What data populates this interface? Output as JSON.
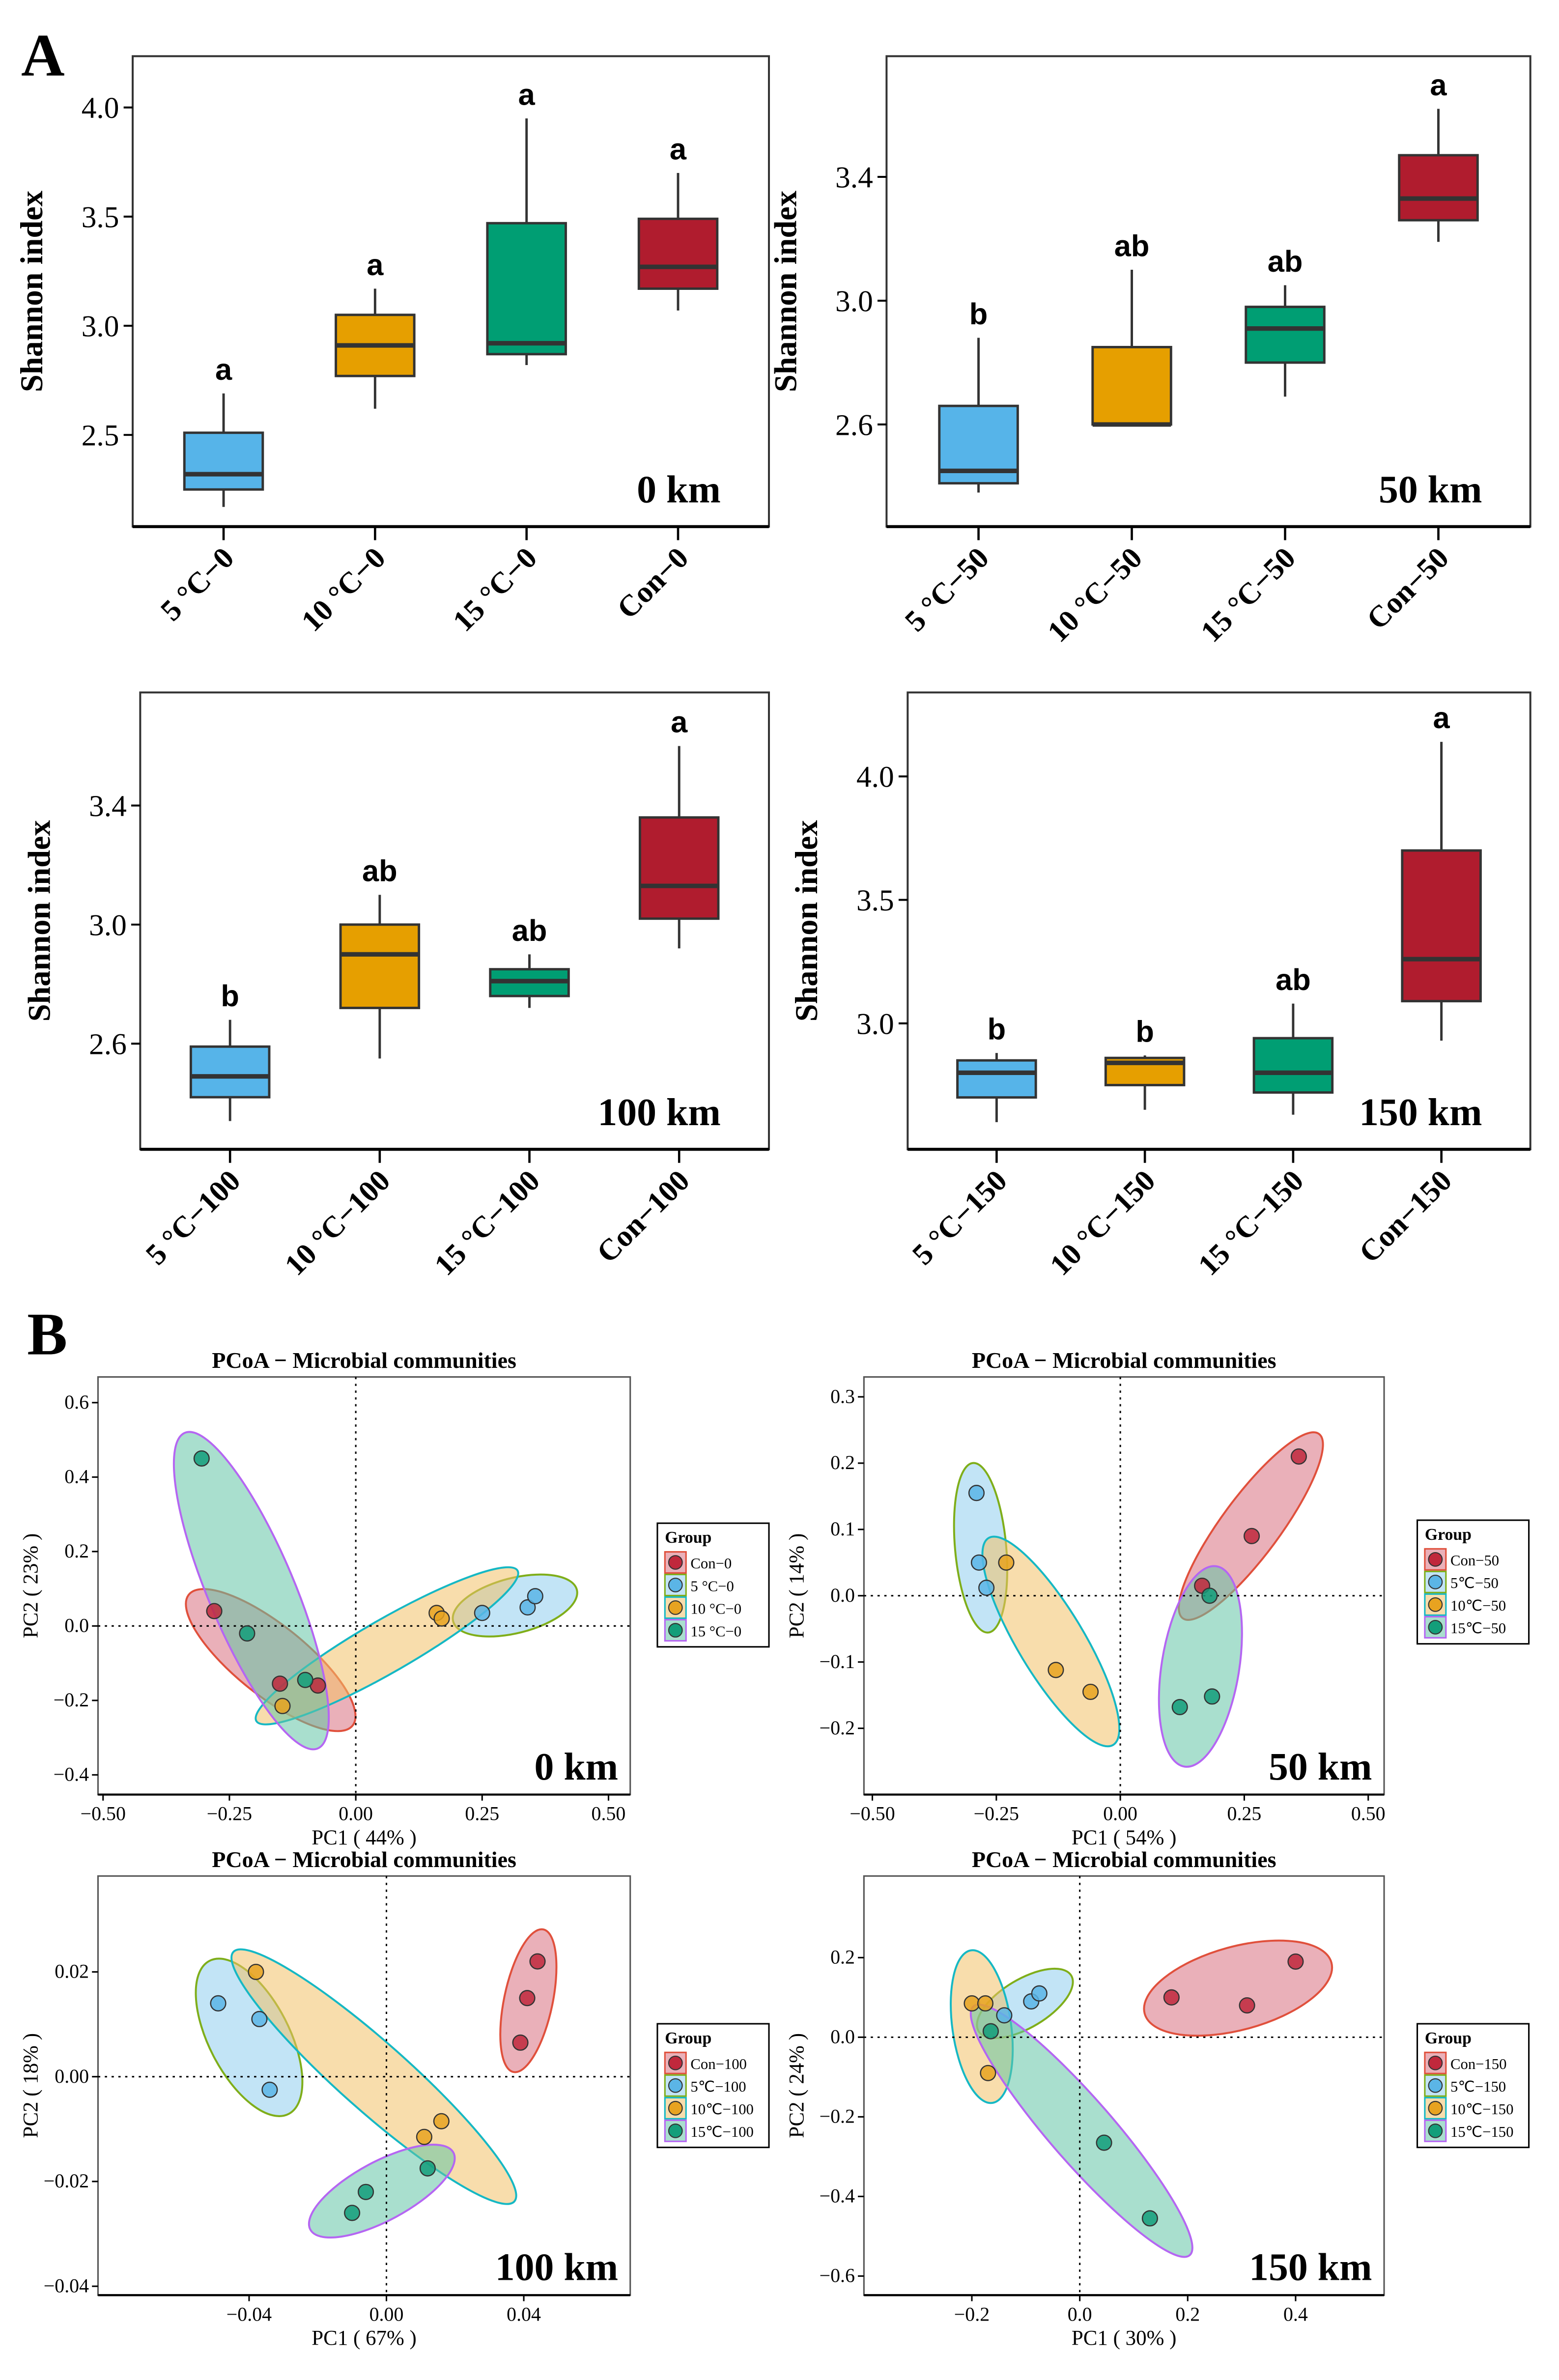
{
  "panel_labels": {
    "a": "A",
    "b": "B"
  },
  "colors": {
    "con": "#b01c2e",
    "c5": "#56b4e9",
    "c10": "#e69f00",
    "c15": "#009e73"
  },
  "chart_data": [
    {
      "type": "box",
      "annotation": "0 km",
      "ylabel": "Shannon index",
      "ylim": [
        2.08,
        4.235
      ],
      "yticks": [
        "2.5",
        "3.0",
        "3.5",
        "4.0"
      ],
      "categories": [
        "5 °C−0",
        "10 °C−0",
        "15 °C−0",
        "Con−0"
      ],
      "boxes": [
        {
          "min": 2.17,
          "q1": 2.25,
          "median": 2.32,
          "q3": 2.51,
          "max": 2.69,
          "letter": "a"
        },
        {
          "min": 2.62,
          "q1": 2.77,
          "median": 2.91,
          "q3": 3.05,
          "max": 3.17,
          "letter": "a"
        },
        {
          "min": 2.82,
          "q1": 2.87,
          "median": 2.92,
          "q3": 3.47,
          "max": 3.95,
          "letter": "a"
        },
        {
          "min": 3.07,
          "q1": 3.17,
          "median": 3.27,
          "q3": 3.49,
          "max": 3.7,
          "letter": "a"
        }
      ]
    },
    {
      "type": "box",
      "annotation": "50 km",
      "ylabel": "Shannon index",
      "ylim": [
        2.27,
        3.79
      ],
      "yticks": [
        "2.6",
        "3.0",
        "3.4"
      ],
      "categories": [
        "5 °C−50",
        "10 °C−50",
        "15 °C−50",
        "Con−50"
      ],
      "boxes": [
        {
          "min": 2.38,
          "q1": 2.41,
          "median": 2.45,
          "q3": 2.66,
          "max": 2.88,
          "letter": "b"
        },
        {
          "min": 2.6,
          "q1": 2.6,
          "median": 2.6,
          "q3": 2.85,
          "max": 3.1,
          "letter": "ab"
        },
        {
          "min": 2.69,
          "q1": 2.8,
          "median": 2.91,
          "q3": 2.98,
          "max": 3.05,
          "letter": "ab"
        },
        {
          "min": 3.19,
          "q1": 3.26,
          "median": 3.33,
          "q3": 3.47,
          "max": 3.62,
          "letter": "a"
        }
      ]
    },
    {
      "type": "box",
      "annotation": "100 km",
      "ylabel": "Shannon index",
      "ylim": [
        2.245,
        3.78
      ],
      "yticks": [
        "2.6",
        "3.0",
        "3.4"
      ],
      "categories": [
        "5 °C−100",
        "10 °C−100",
        "15 °C−100",
        "Con−100"
      ],
      "boxes": [
        {
          "min": 2.34,
          "q1": 2.42,
          "median": 2.49,
          "q3": 2.59,
          "max": 2.68,
          "letter": "b"
        },
        {
          "min": 2.55,
          "q1": 2.72,
          "median": 2.9,
          "q3": 3.0,
          "max": 3.1,
          "letter": "ab"
        },
        {
          "min": 2.72,
          "q1": 2.76,
          "median": 2.81,
          "q3": 2.85,
          "max": 2.9,
          "letter": "ab"
        },
        {
          "min": 2.92,
          "q1": 3.02,
          "median": 3.13,
          "q3": 3.36,
          "max": 3.6,
          "letter": "a"
        }
      ]
    },
    {
      "type": "box",
      "annotation": "150 km",
      "ylabel": "Shannon index",
      "ylim": [
        2.49,
        4.34
      ],
      "yticks": [
        "3.0",
        "3.5",
        "4.0"
      ],
      "categories": [
        "5 °C−150",
        "10 °C−150",
        "15 °C−150",
        "Con−150"
      ],
      "boxes": [
        {
          "min": 2.6,
          "q1": 2.7,
          "median": 2.8,
          "q3": 2.85,
          "max": 2.88,
          "letter": "b"
        },
        {
          "min": 2.65,
          "q1": 2.75,
          "median": 2.84,
          "q3": 2.86,
          "max": 2.87,
          "letter": "b"
        },
        {
          "min": 2.63,
          "q1": 2.72,
          "median": 2.8,
          "q3": 2.94,
          "max": 3.08,
          "letter": "ab"
        },
        {
          "min": 2.93,
          "q1": 3.09,
          "median": 3.26,
          "q3": 3.7,
          "max": 4.14,
          "letter": "a"
        }
      ]
    },
    {
      "type": "scatter",
      "title": "PCoA − Microbial communities",
      "annotation": "0 km",
      "xlabel": "PC1 ( 44% )",
      "ylabel": "PC2 ( 23% )",
      "xlim": [
        -0.51,
        0.543
      ],
      "ylim": [
        -0.453,
        0.669
      ],
      "xticks": [
        "−0.50",
        "−0.25",
        "0.00",
        "0.25",
        "0.50"
      ],
      "xtick_values": [
        -0.5,
        -0.25,
        0,
        0.25,
        0.5
      ],
      "yticks": [
        "−0.4",
        "−0.2",
        "0.0",
        "0.2",
        "0.4",
        "0.6"
      ],
      "ytick_values": [
        -0.4,
        -0.2,
        0,
        0.2,
        0.4,
        0.6
      ],
      "legend_title": "Group",
      "series": [
        {
          "name": "Con−0",
          "points": [
            [
              -0.28,
              0.04
            ],
            [
              -0.15,
              -0.155
            ],
            [
              -0.075,
              -0.16
            ]
          ]
        },
        {
          "name": "5 °C−0",
          "points": [
            [
              0.25,
              0.035
            ],
            [
              0.34,
              0.05
            ],
            [
              0.355,
              0.08
            ]
          ]
        },
        {
          "name": "10 °C−0",
          "points": [
            [
              0.16,
              0.035
            ],
            [
              0.17,
              0.02
            ],
            [
              -0.145,
              -0.215
            ]
          ]
        },
        {
          "name": "15 °C−0",
          "points": [
            [
              -0.305,
              0.45
            ],
            [
              -0.215,
              -0.02
            ],
            [
              -0.1,
              -0.145
            ]
          ]
        }
      ]
    },
    {
      "type": "scatter",
      "title": "PCoA − Microbial communities",
      "annotation": "50 km",
      "xlabel": "PC1 ( 54% )",
      "ylabel": "PC2 ( 14% )",
      "xlim": [
        -0.517,
        0.532
      ],
      "ylim": [
        -0.3,
        0.33
      ],
      "xticks": [
        "−0.50",
        "−0.25",
        "0.00",
        "0.25",
        "0.50"
      ],
      "xtick_values": [
        -0.5,
        -0.25,
        0,
        0.25,
        0.5
      ],
      "yticks": [
        "−0.2",
        "−0.1",
        "0.0",
        "0.1",
        "0.2",
        "0.3"
      ],
      "ytick_values": [
        -0.2,
        -0.1,
        0,
        0.1,
        0.2,
        0.3
      ],
      "legend_title": "Group",
      "series": [
        {
          "name": "Con−50",
          "points": [
            [
              0.36,
              0.21
            ],
            [
              0.265,
              0.09
            ],
            [
              0.165,
              0.015
            ]
          ]
        },
        {
          "name": "5℃−50",
          "points": [
            [
              -0.29,
              0.155
            ],
            [
              -0.285,
              0.05
            ],
            [
              -0.27,
              0.012
            ]
          ]
        },
        {
          "name": "10℃−50",
          "points": [
            [
              -0.23,
              0.05
            ],
            [
              -0.13,
              -0.112
            ],
            [
              -0.06,
              -0.145
            ]
          ]
        },
        {
          "name": "15℃−50",
          "points": [
            [
              0.12,
              -0.168
            ],
            [
              0.185,
              -0.152
            ],
            [
              0.18,
              0.0
            ]
          ]
        }
      ]
    },
    {
      "type": "scatter",
      "title": "PCoA − Microbial communities",
      "annotation": "100 km",
      "xlabel": "PC1 ( 67% )",
      "ylabel": "PC2 ( 18% )",
      "xlim": [
        -0.084,
        0.071
      ],
      "ylim": [
        -0.0417,
        0.0383
      ],
      "xticks": [
        "−0.04",
        "0.00",
        "0.04"
      ],
      "xtick_values": [
        -0.04,
        0,
        0.04
      ],
      "yticks": [
        "−0.04",
        "−0.02",
        "0.00",
        "0.02"
      ],
      "ytick_values": [
        -0.04,
        -0.02,
        0,
        0.02
      ],
      "legend_title": "Group",
      "series": [
        {
          "name": "Con−100",
          "points": [
            [
              0.044,
              0.022
            ],
            [
              0.041,
              0.015
            ],
            [
              0.039,
              0.0065
            ]
          ]
        },
        {
          "name": "5℃−100",
          "points": [
            [
              -0.049,
              0.014
            ],
            [
              -0.037,
              0.011
            ],
            [
              -0.034,
              -0.0025
            ]
          ]
        },
        {
          "name": "10℃−100",
          "points": [
            [
              -0.038,
              0.02
            ],
            [
              0.016,
              -0.0085
            ],
            [
              0.011,
              -0.0115
            ]
          ]
        },
        {
          "name": "15℃−100",
          "points": [
            [
              -0.01,
              -0.026
            ],
            [
              -0.006,
              -0.022
            ],
            [
              0.012,
              -0.0175
            ]
          ]
        }
      ]
    },
    {
      "type": "scatter",
      "title": "PCoA − Microbial communities",
      "annotation": "150 km",
      "xlabel": "PC1 ( 30% )",
      "ylabel": "PC2 ( 24% )",
      "xlim": [
        -0.4,
        0.564
      ],
      "ylim": [
        -0.648,
        0.405
      ],
      "xticks": [
        "−0.2",
        "0.0",
        "0.2",
        "0.4"
      ],
      "xtick_values": [
        -0.2,
        0,
        0.2,
        0.4
      ],
      "yticks": [
        "−0.6",
        "−0.4",
        "−0.2",
        "0.0",
        "0.2"
      ],
      "ytick_values": [
        -0.6,
        -0.4,
        -0.2,
        0,
        0.2
      ],
      "legend_title": "Group",
      "series": [
        {
          "name": "Con−150",
          "points": [
            [
              0.17,
              0.1
            ],
            [
              0.31,
              0.08
            ],
            [
              0.4,
              0.19
            ]
          ]
        },
        {
          "name": "5℃−150",
          "points": [
            [
              -0.09,
              0.09
            ],
            [
              -0.075,
              0.11
            ],
            [
              -0.14,
              0.055
            ]
          ]
        },
        {
          "name": "10℃−150",
          "points": [
            [
              -0.2,
              0.085
            ],
            [
              -0.175,
              0.085
            ],
            [
              -0.17,
              -0.09
            ]
          ]
        },
        {
          "name": "15℃−150",
          "points": [
            [
              -0.165,
              0.015
            ],
            [
              0.045,
              -0.265
            ],
            [
              0.13,
              -0.455
            ]
          ]
        }
      ]
    }
  ]
}
